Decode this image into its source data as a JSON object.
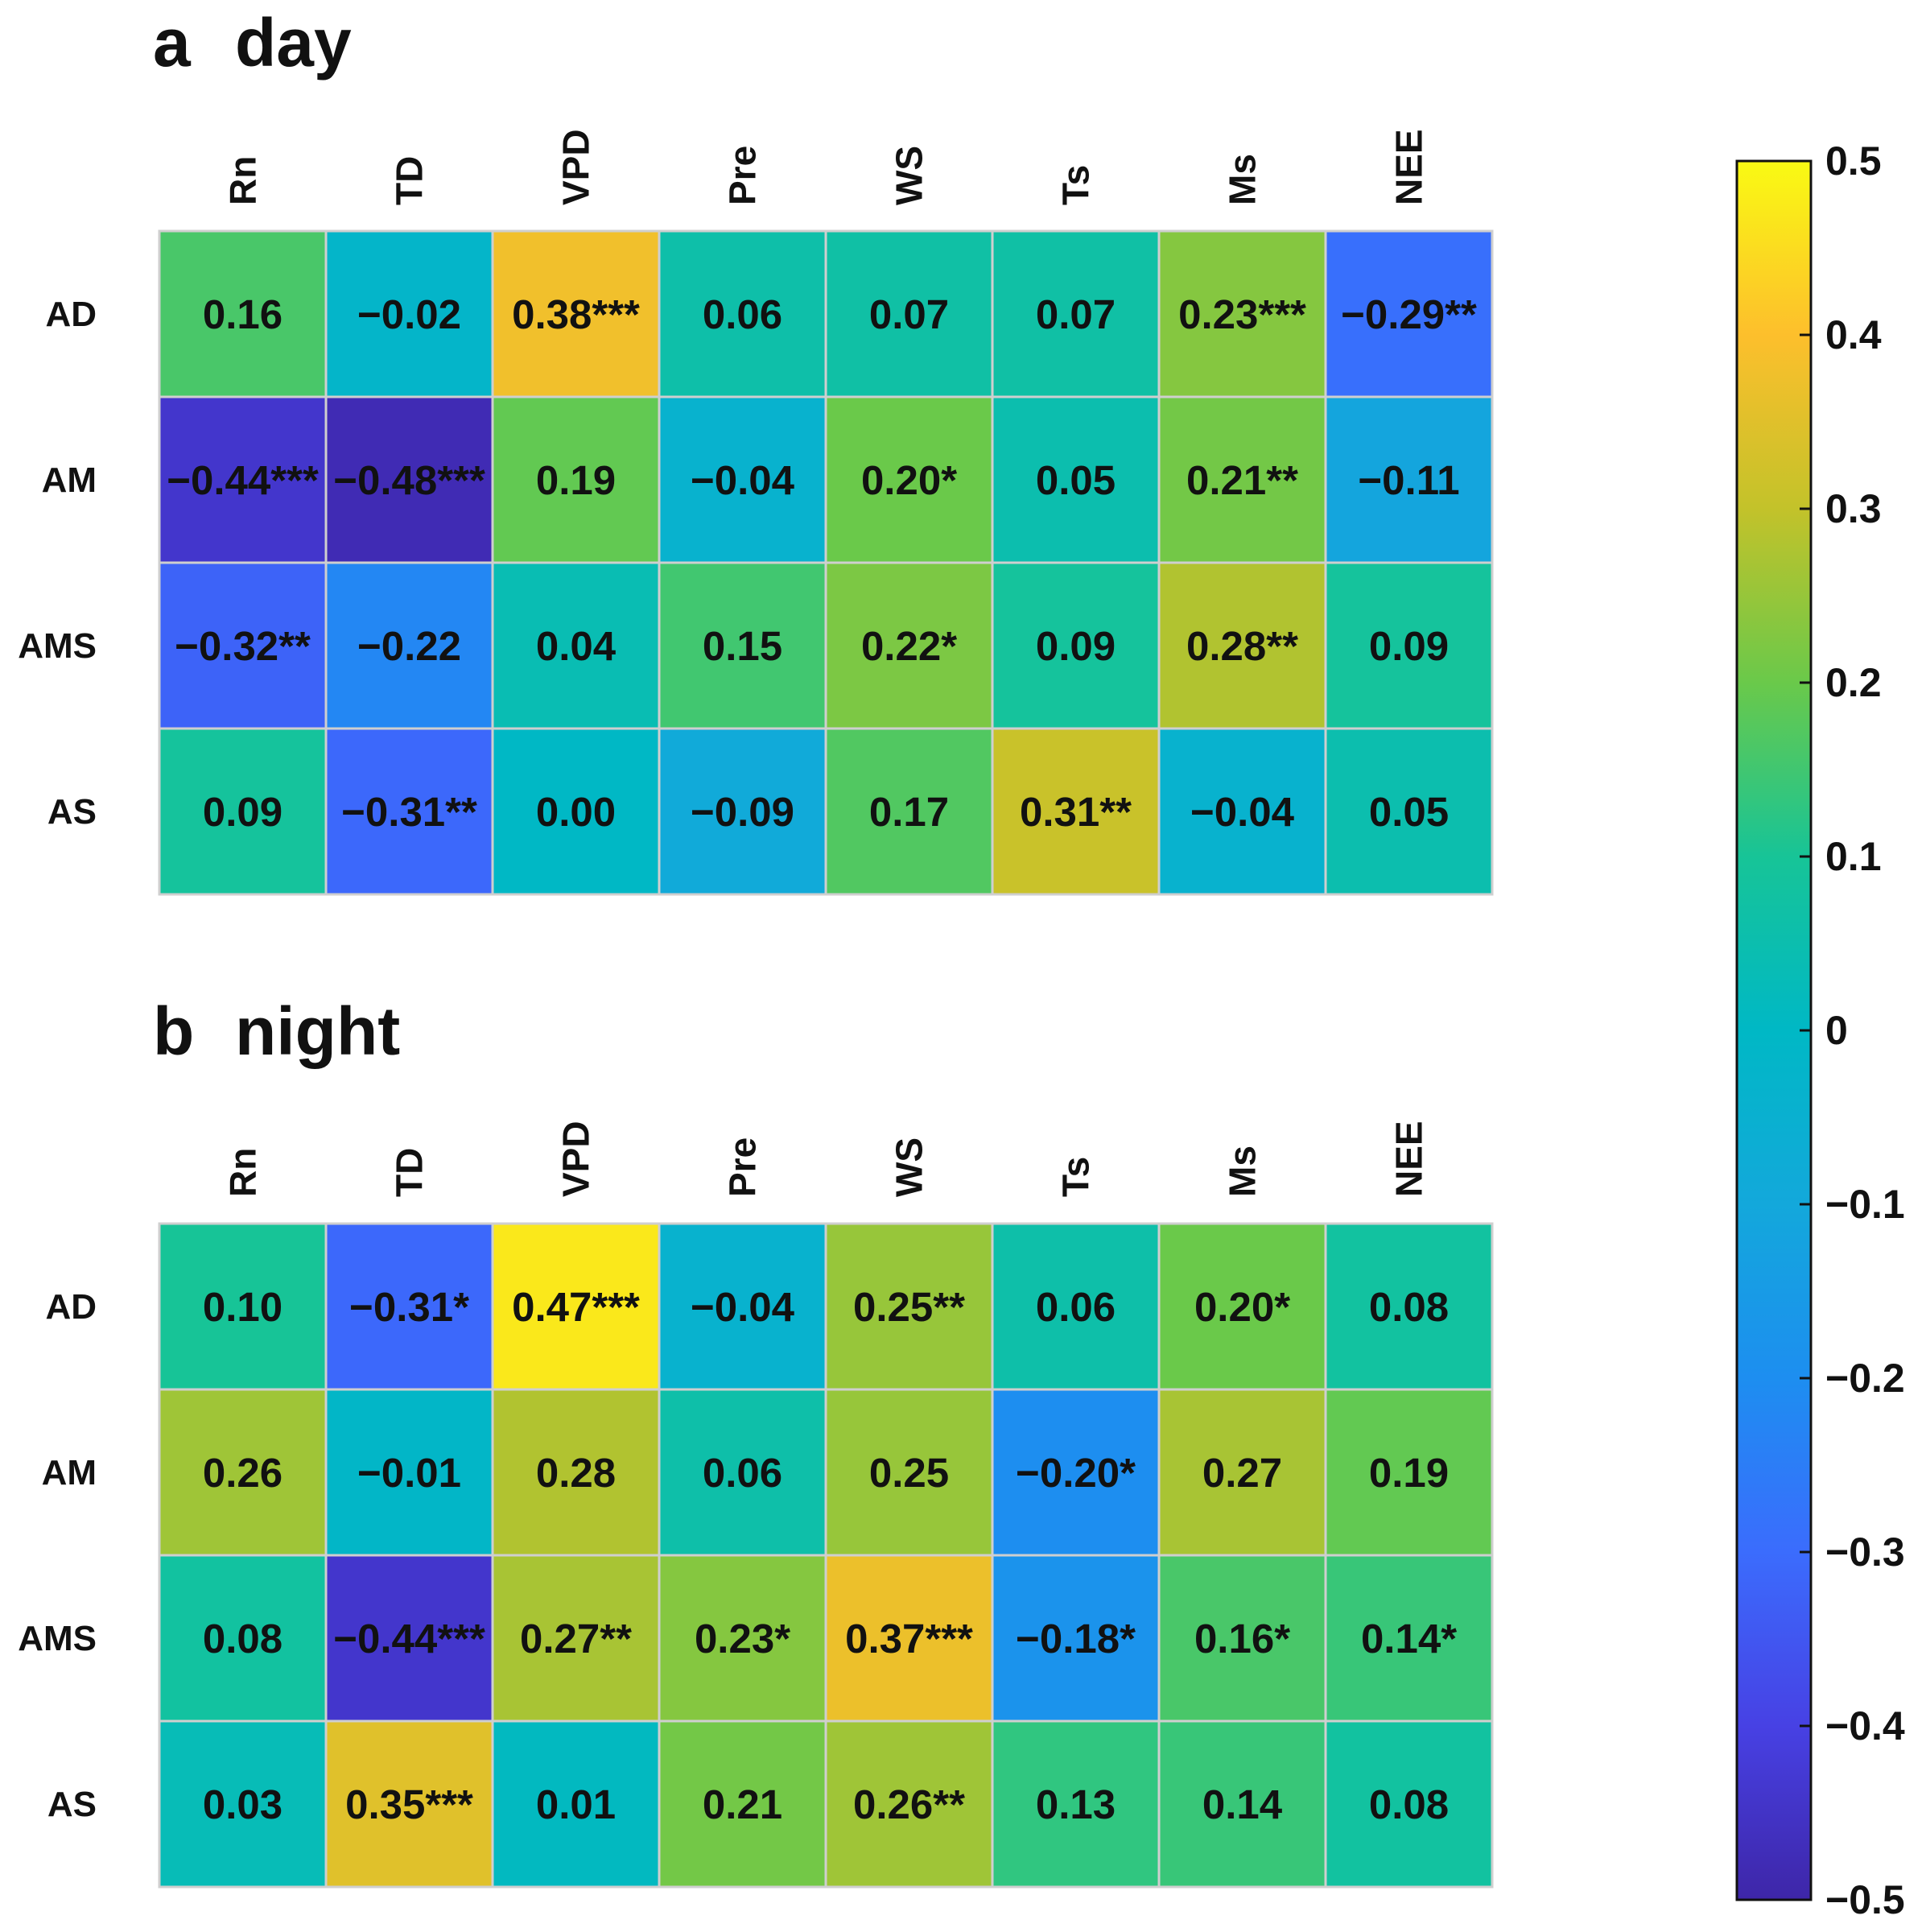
{
  "chart_data": [
    {
      "type": "heatmap",
      "panel_letter": "a",
      "title": "day",
      "columns": [
        "Rn",
        "TD",
        "VPD",
        "Pre",
        "WS",
        "Ts",
        "Ms",
        "NEE"
      ],
      "rows": [
        "AD",
        "AM",
        "AMS",
        "AS"
      ],
      "values": [
        [
          0.16,
          -0.02,
          0.38,
          0.06,
          0.07,
          0.07,
          0.23,
          -0.29
        ],
        [
          -0.44,
          -0.48,
          0.19,
          -0.04,
          0.2,
          0.05,
          0.21,
          -0.11
        ],
        [
          -0.32,
          -0.22,
          0.04,
          0.15,
          0.22,
          0.09,
          0.28,
          0.09
        ],
        [
          0.09,
          -0.31,
          0.0,
          -0.09,
          0.17,
          0.31,
          -0.04,
          0.05
        ]
      ],
      "labels": [
        [
          "0.16",
          "−0.02",
          "0.38***",
          "0.06",
          "0.07",
          "0.07",
          "0.23***",
          "−0.29**"
        ],
        [
          "−0.44***",
          "−0.48***",
          "0.19",
          "−0.04",
          "0.20*",
          "0.05",
          "0.21**",
          "−0.11"
        ],
        [
          "−0.32**",
          "−0.22",
          "0.04",
          "0.15",
          "0.22*",
          "0.09",
          "0.28**",
          "0.09"
        ],
        [
          "0.09",
          "−0.31**",
          "0.00",
          "−0.09",
          "0.17",
          "0.31**",
          "−0.04",
          "0.05"
        ]
      ]
    },
    {
      "type": "heatmap",
      "panel_letter": "b",
      "title": "night",
      "columns": [
        "Rn",
        "TD",
        "VPD",
        "Pre",
        "WS",
        "Ts",
        "Ms",
        "NEE"
      ],
      "rows": [
        "AD",
        "AM",
        "AMS",
        "AS"
      ],
      "values": [
        [
          0.1,
          -0.31,
          0.47,
          -0.04,
          0.25,
          0.06,
          0.2,
          0.08
        ],
        [
          0.26,
          -0.01,
          0.28,
          0.06,
          0.25,
          -0.2,
          0.27,
          0.19
        ],
        [
          0.08,
          -0.44,
          0.27,
          0.23,
          0.37,
          -0.18,
          0.16,
          0.14
        ],
        [
          0.03,
          0.35,
          0.01,
          0.21,
          0.26,
          0.13,
          0.14,
          0.08
        ]
      ],
      "labels": [
        [
          "0.10",
          "−0.31*",
          "0.47***",
          "−0.04",
          "0.25**",
          "0.06",
          "0.20*",
          "0.08"
        ],
        [
          "0.26",
          "−0.01",
          "0.28",
          "0.06",
          "0.25",
          "−0.20*",
          "0.27",
          "0.19"
        ],
        [
          "0.08",
          "−0.44***",
          "0.27**",
          "0.23*",
          "0.37***",
          "−0.18*",
          "0.16*",
          "0.14*"
        ],
        [
          "0.03",
          "0.35***",
          "0.01",
          "0.21",
          "0.26**",
          "0.13",
          "0.14",
          "0.08"
        ]
      ]
    }
  ],
  "colorbar": {
    "colormap": "parula",
    "range": [
      -0.5,
      0.5
    ],
    "ticks": [
      0.5,
      0.4,
      0.3,
      0.2,
      0.1,
      0,
      -0.1,
      -0.2,
      -0.3,
      -0.4,
      -0.5
    ],
    "tick_labels": [
      "0.5",
      "0.4",
      "0.3",
      "0.2",
      "0.1",
      "0",
      "−0.1",
      "−0.2",
      "−0.3",
      "−0.4",
      "−0.5"
    ]
  }
}
